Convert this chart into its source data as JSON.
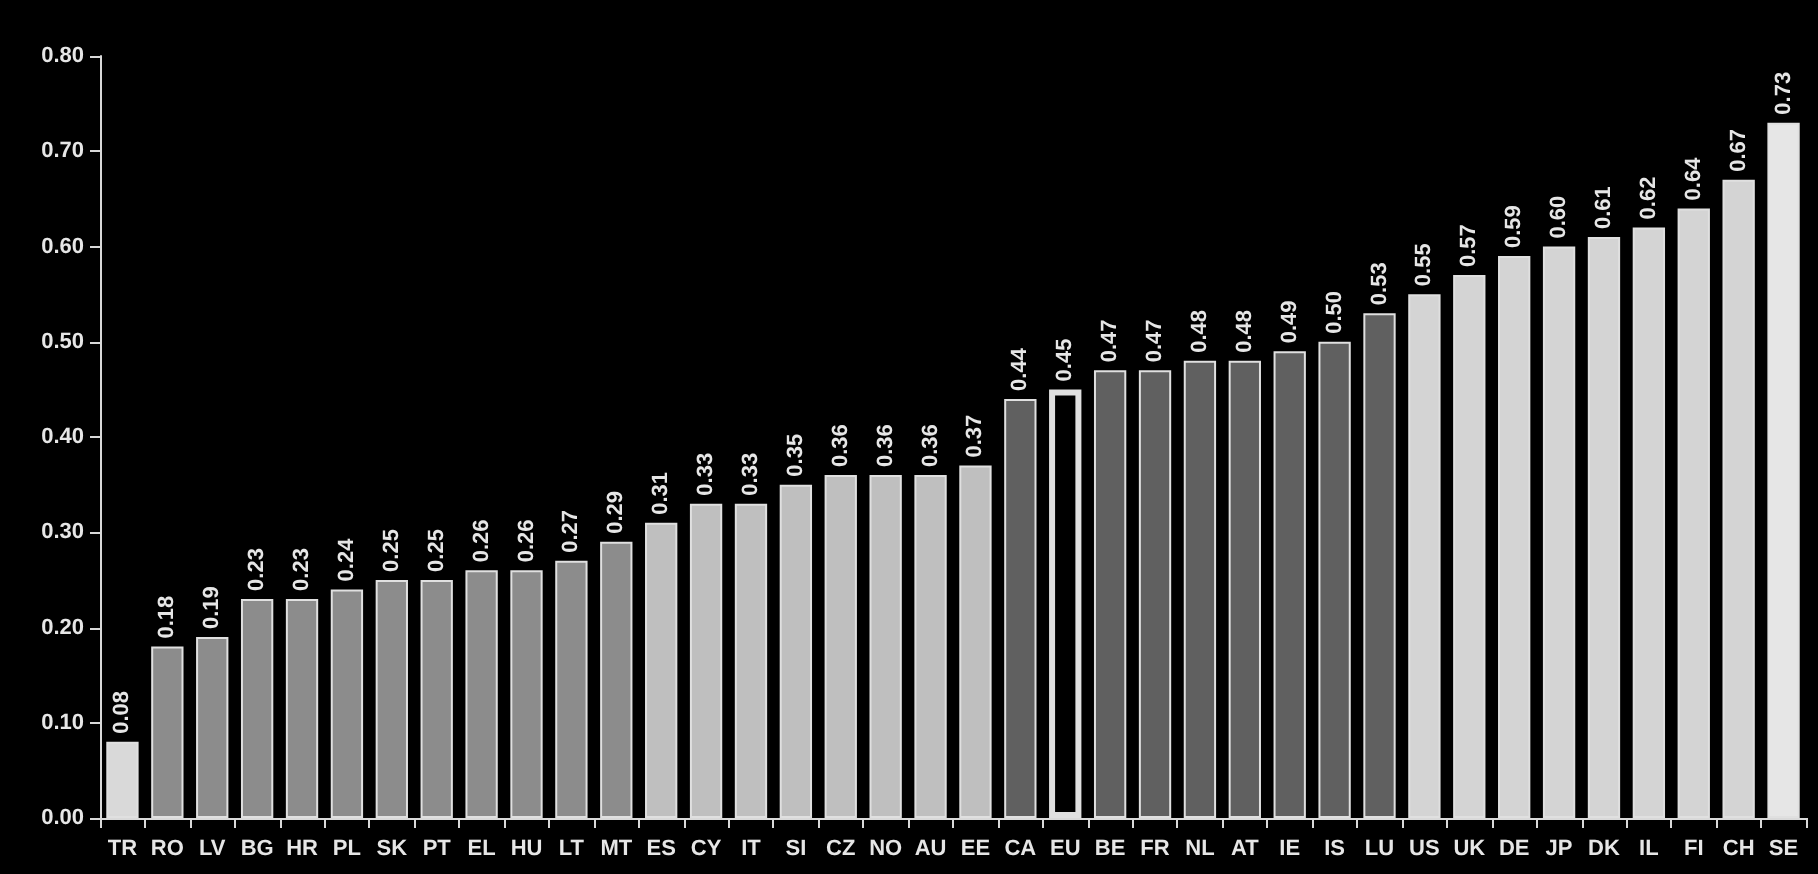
{
  "chart_data": {
    "type": "bar",
    "categories": [
      "TR",
      "RO",
      "LV",
      "BG",
      "HR",
      "PL",
      "SK",
      "PT",
      "EL",
      "HU",
      "LT",
      "MT",
      "ES",
      "CY",
      "IT",
      "SI",
      "CZ",
      "NO",
      "AU",
      "EE",
      "CA",
      "EU",
      "BE",
      "FR",
      "NL",
      "AT",
      "IE",
      "IS",
      "LU",
      "US",
      "UK",
      "DE",
      "JP",
      "DK",
      "IL",
      "FI",
      "CH",
      "SE"
    ],
    "values": [
      0.08,
      0.18,
      0.19,
      0.23,
      0.23,
      0.24,
      0.25,
      0.25,
      0.26,
      0.26,
      0.27,
      0.29,
      0.31,
      0.33,
      0.33,
      0.35,
      0.36,
      0.36,
      0.36,
      0.37,
      0.44,
      0.45,
      0.47,
      0.47,
      0.48,
      0.48,
      0.49,
      0.5,
      0.53,
      0.55,
      0.57,
      0.59,
      0.6,
      0.61,
      0.62,
      0.64,
      0.67,
      0.73
    ],
    "colors": [
      "#d9d9d9",
      "#8c8c8c",
      "#8c8c8c",
      "#8c8c8c",
      "#8c8c8c",
      "#8c8c8c",
      "#8c8c8c",
      "#8c8c8c",
      "#8c8c8c",
      "#8c8c8c",
      "#8c8c8c",
      "#8c8c8c",
      "#bfbfbf",
      "#bfbfbf",
      "#bfbfbf",
      "#bfbfbf",
      "#bfbfbf",
      "#bfbfbf",
      "#bfbfbf",
      "#bfbfbf",
      "#606060",
      "#000000",
      "#606060",
      "#606060",
      "#606060",
      "#606060",
      "#606060",
      "#606060",
      "#606060",
      "#d4d4d4",
      "#d4d4d4",
      "#d4d4d4",
      "#d4d4d4",
      "#d4d4d4",
      "#d4d4d4",
      "#d4d4d4",
      "#d4d4d4",
      "#e6e6e6"
    ],
    "value_labels": [
      "0.08",
      "0.18",
      "0.19",
      "0.23",
      "0.23",
      "0.24",
      "0.25",
      "0.25",
      "0.26",
      "0.26",
      "0.27",
      "0.29",
      "0.31",
      "0.33",
      "0.33",
      "0.35",
      "0.36",
      "0.36",
      "0.36",
      "0.37",
      "0.44",
      "0.45",
      "0.47",
      "0.47",
      "0.48",
      "0.48",
      "0.49",
      "0.50",
      "0.53",
      "0.55",
      "0.57",
      "0.59",
      "0.60",
      "0.61",
      "0.62",
      "0.64",
      "0.67",
      "0.73"
    ],
    "ylim": [
      0,
      0.8
    ],
    "yticks": [
      {
        "value": 0,
        "label": "0.00"
      },
      {
        "value": 0.1,
        "label": "0.10"
      },
      {
        "value": 0.2,
        "label": "0.20"
      },
      {
        "value": 0.3,
        "label": "0.30"
      },
      {
        "value": 0.4,
        "label": "0.40"
      },
      {
        "value": 0.5,
        "label": "0.50"
      },
      {
        "value": 0.6,
        "label": "0.60"
      },
      {
        "value": 0.7,
        "label": "0.70"
      },
      {
        "value": 0.8,
        "label": "0.80"
      }
    ],
    "grid": false
  }
}
